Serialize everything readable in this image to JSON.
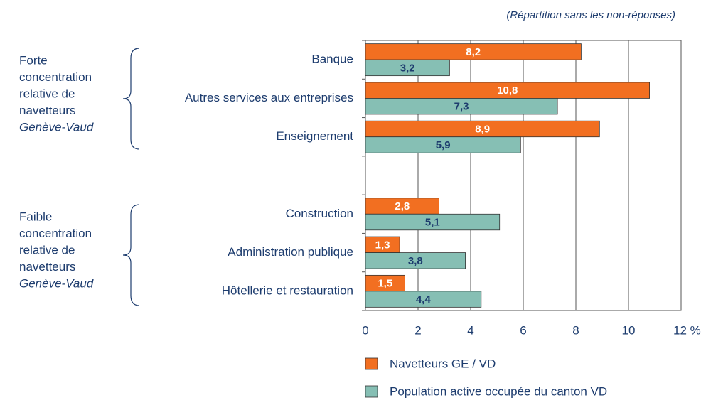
{
  "chart_data": {
    "type": "bar",
    "orientation": "horizontal",
    "subtitle": "(Répartition sans les non-réponses)",
    "categories": [
      "Banque",
      "Autres services aux entreprises",
      "Enseignement",
      null,
      "Construction",
      "Administration publique",
      "Hôtellerie et restauration"
    ],
    "series": [
      {
        "name": "Navetteurs GE / VD",
        "color": "#f26f21",
        "values": [
          8.2,
          10.8,
          8.9,
          null,
          2.8,
          1.3,
          1.5
        ],
        "value_labels": [
          "8,2",
          "10,8",
          "8,9",
          null,
          "2,8",
          "1,3",
          "1,5"
        ]
      },
      {
        "name": "Population active occupée du canton VD",
        "color": "#86bfb4",
        "values": [
          3.2,
          7.3,
          5.9,
          null,
          5.1,
          3.8,
          4.4
        ],
        "value_labels": [
          "3,2",
          "7,3",
          "5,9",
          null,
          "5,1",
          "3,8",
          "4,4"
        ]
      }
    ],
    "xlim": [
      0,
      12
    ],
    "xticks": [
      0,
      2,
      4,
      6,
      8,
      10,
      {
        "value": 12,
        "label": "12 %"
      }
    ],
    "grid": true,
    "annotations": [
      {
        "lines": [
          "Forte",
          "concentration",
          "relative de",
          "navetteurs",
          "Genève-Vaud"
        ]
      },
      {
        "lines": [
          "Faible",
          "concentration",
          "relative de",
          "navetteurs",
          "Genève-Vaud"
        ]
      }
    ]
  }
}
